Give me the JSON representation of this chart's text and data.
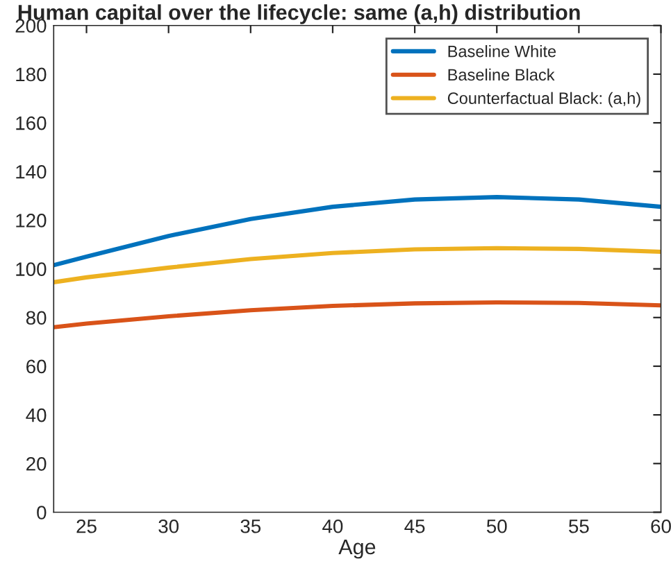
{
  "chart_data": {
    "type": "line",
    "title": "Human capital over the lifecycle: same (a,h) distribution",
    "xlabel": "Age",
    "x": [
      23,
      25,
      30,
      35,
      40,
      45,
      50,
      55,
      60
    ],
    "series": [
      {
        "name": "Baseline White",
        "color": "#0072bd",
        "values": [
          101.5,
          105,
          113.5,
          120.5,
          125.5,
          128.5,
          129.5,
          128.5,
          125.5
        ]
      },
      {
        "name": "Baseline Black",
        "color": "#d95319",
        "values": [
          76,
          77.5,
          80.5,
          83,
          84.8,
          85.8,
          86.2,
          86,
          85
        ]
      },
      {
        "name": "Counterfactual Black: (a,h)",
        "color": "#edb120",
        "values": [
          94.5,
          96.5,
          100.5,
          104,
          106.5,
          108,
          108.5,
          108.2,
          107
        ]
      }
    ],
    "xlim": [
      23,
      60
    ],
    "xticks": [
      25,
      30,
      35,
      40,
      45,
      50,
      55,
      60
    ],
    "ylim": [
      0,
      200
    ],
    "yticks": [
      0,
      20,
      40,
      60,
      80,
      100,
      120,
      140,
      160,
      180,
      200
    ],
    "legend": "top right",
    "grid": false,
    "line_style": "solid"
  }
}
